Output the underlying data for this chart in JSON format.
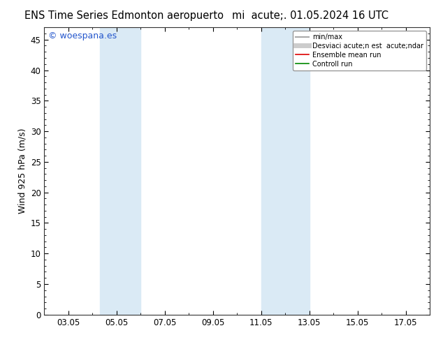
{
  "title_left": "ENS Time Series Edmonton aeropuerto",
  "title_right": "mi  acute;. 01.05.2024 16 UTC",
  "ylabel": "Wind 925 hPa (m/s)",
  "watermark": "© woespana.es",
  "ylim": [
    0,
    47
  ],
  "yticks": [
    0,
    5,
    10,
    15,
    20,
    25,
    30,
    35,
    40,
    45
  ],
  "xlim": [
    2.0,
    18.0
  ],
  "xtick_labels": [
    "03.05",
    "05.05",
    "07.05",
    "09.05",
    "11.05",
    "13.05",
    "15.05",
    "17.05"
  ],
  "xtick_positions": [
    3,
    5,
    7,
    9,
    11,
    13,
    15,
    17
  ],
  "shade_bands": [
    {
      "xstart": 4.3,
      "xend": 6.0
    },
    {
      "xstart": 11.0,
      "xend": 13.0
    }
  ],
  "shade_color": "#daeaf5",
  "background_color": "#ffffff",
  "legend_items": [
    {
      "label": "min/max",
      "color": "#aaaaaa",
      "lw": 1.5,
      "style": "-"
    },
    {
      "label": "Desviaci acute;n est  acute;ndar",
      "color": "#cccccc",
      "lw": 5,
      "style": "-"
    },
    {
      "label": "Ensemble mean run",
      "color": "#dd0000",
      "lw": 1.2,
      "style": "-"
    },
    {
      "label": "Controll run",
      "color": "#008800",
      "lw": 1.2,
      "style": "-"
    }
  ],
  "title_fontsize": 10.5,
  "axis_fontsize": 9,
  "tick_fontsize": 8.5,
  "watermark_color": "#2255cc",
  "watermark_fontsize": 9
}
